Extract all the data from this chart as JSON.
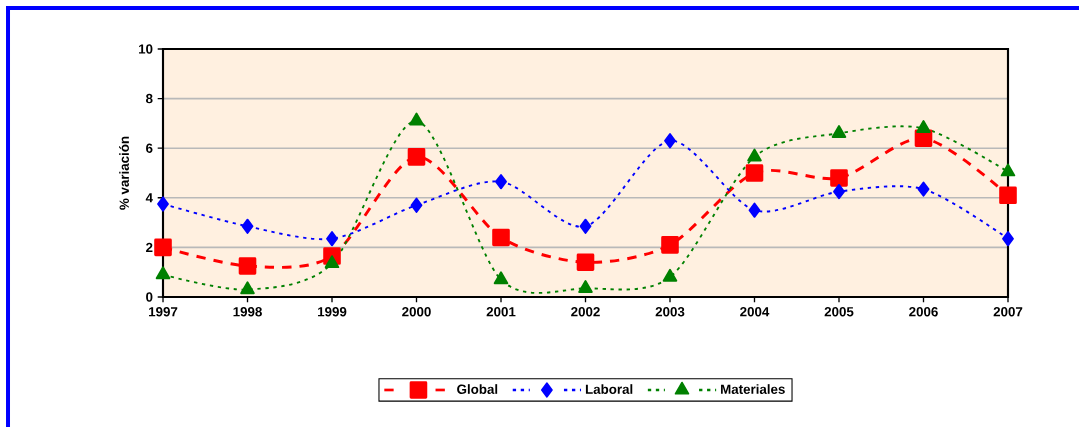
{
  "chart_data": {
    "type": "line",
    "ylabel": "% variación",
    "x": [
      1997,
      1998,
      1999,
      2000,
      2001,
      2002,
      2003,
      2004,
      2005,
      2006,
      2007
    ],
    "xlim": [
      1997,
      2007
    ],
    "xticks": [
      1997,
      1998,
      1999,
      2000,
      2001,
      2002,
      2003,
      2004,
      2005,
      2006,
      2007
    ],
    "ylim": [
      0,
      10
    ],
    "yticks": [
      0,
      2,
      4,
      6,
      8,
      10
    ],
    "grid": "y",
    "legend": "bottom",
    "series": [
      {
        "name": "Global",
        "color": "#ff0000",
        "marker": "square",
        "line_style": "dashed",
        "values": [
          2.0,
          1.25,
          1.65,
          5.65,
          2.4,
          1.4,
          2.1,
          5.0,
          4.8,
          6.4,
          4.1
        ]
      },
      {
        "name": "Laboral",
        "color": "#0000ff",
        "marker": "diamond",
        "line_style": "dotted",
        "values": [
          3.75,
          2.85,
          2.35,
          3.7,
          4.65,
          2.85,
          6.3,
          3.5,
          4.25,
          4.35,
          2.35
        ]
      },
      {
        "name": "Materiales",
        "color": "#008000",
        "marker": "triangle",
        "line_style": "dotted",
        "values": [
          0.9,
          0.3,
          1.35,
          7.1,
          0.7,
          0.35,
          0.8,
          5.65,
          6.6,
          6.8,
          5.05
        ]
      }
    ]
  }
}
